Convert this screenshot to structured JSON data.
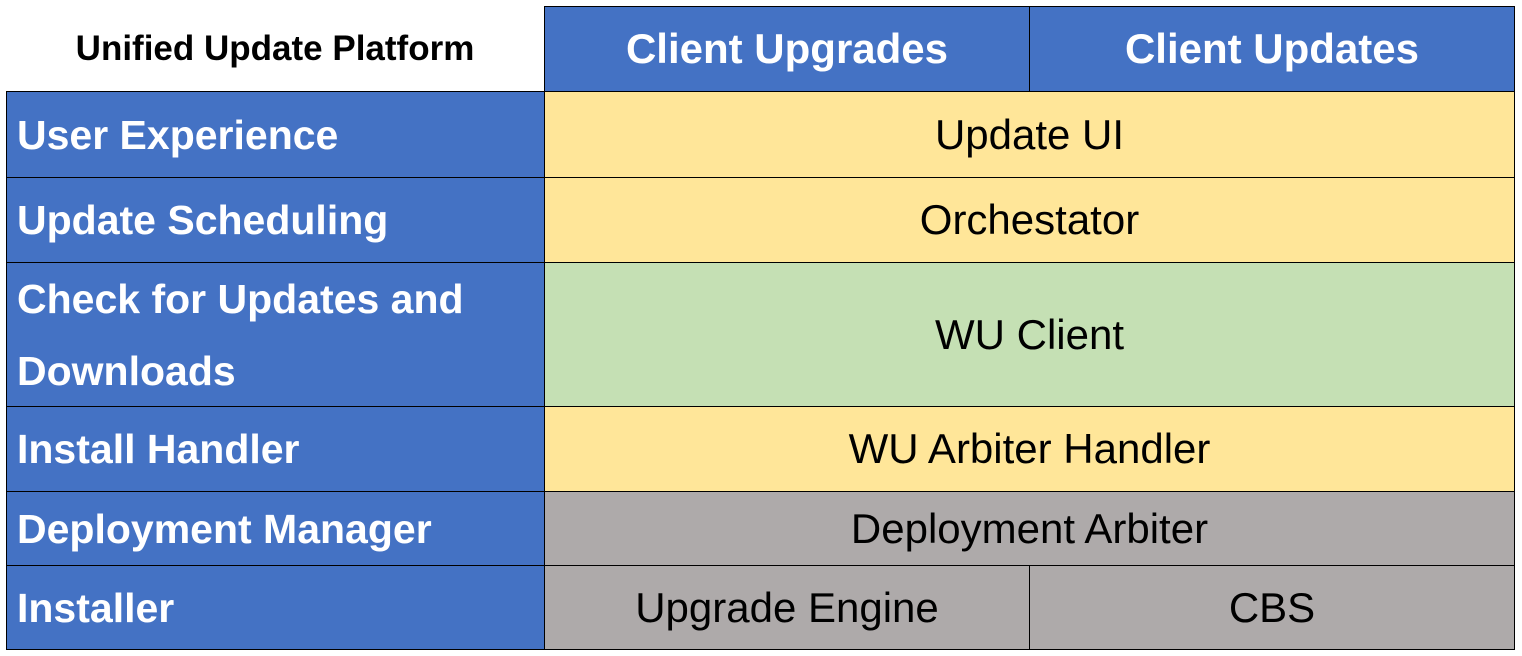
{
  "title": "Unified Update Platform",
  "columns": [
    "Client Upgrades",
    "Client Updates"
  ],
  "rows": [
    {
      "label": "User Experience",
      "cells": [
        "Update UI"
      ]
    },
    {
      "label": "Update Scheduling",
      "cells": [
        "Orchestator"
      ]
    },
    {
      "label": "Check for Updates and Downloads",
      "cells": [
        "WU Client"
      ]
    },
    {
      "label": "Install Handler",
      "cells": [
        "WU Arbiter Handler"
      ]
    },
    {
      "label": "Deployment Manager",
      "cells": [
        "Deployment Arbiter"
      ]
    },
    {
      "label": "Installer",
      "cells": [
        "Upgrade Engine",
        "CBS"
      ]
    }
  ],
  "colors": {
    "header": "#4472C4",
    "yellow": "#FFE699",
    "green": "#C5E0B4",
    "gray": "#AEAAAA"
  }
}
